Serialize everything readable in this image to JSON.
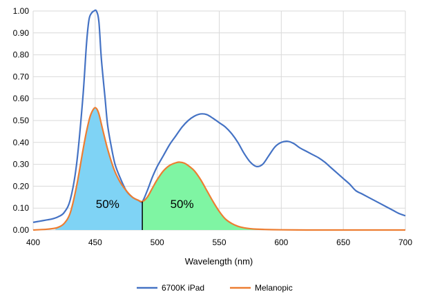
{
  "chart_data": {
    "type": "line",
    "title": "",
    "xlabel": "Wavelength (nm)",
    "ylabel": "",
    "xlim": [
      400,
      700
    ],
    "ylim": [
      0,
      1
    ],
    "xticks": [
      400,
      450,
      500,
      550,
      600,
      650,
      700
    ],
    "yticks": [
      0,
      0.1,
      0.2,
      0.3,
      0.4,
      0.5,
      0.6,
      0.7,
      0.8,
      0.9,
      1.0
    ],
    "xtick_labels": [
      "400",
      "450",
      "500",
      "550",
      "600",
      "650",
      "700"
    ],
    "ytick_labels": [
      "0.00",
      "0.10",
      "0.20",
      "0.30",
      "0.40",
      "0.50",
      "0.60",
      "0.70",
      "0.80",
      "0.90",
      "1.00"
    ],
    "grid": true,
    "legend_position": "bottom",
    "series": [
      {
        "name": "6700K iPad",
        "color": "#4472c4",
        "x": [
          400,
          405,
          410,
          415,
          420,
          425,
          430,
          435,
          440,
          443,
          445,
          447,
          449,
          451,
          453,
          455,
          458,
          460,
          463,
          466,
          470,
          475,
          480,
          485,
          488,
          492,
          496,
          500,
          505,
          510,
          515,
          520,
          525,
          530,
          535,
          540,
          545,
          550,
          555,
          560,
          565,
          570,
          575,
          580,
          585,
          590,
          595,
          600,
          605,
          610,
          615,
          620,
          625,
          630,
          635,
          640,
          645,
          650,
          655,
          660,
          665,
          670,
          675,
          680,
          685,
          690,
          695,
          700
        ],
        "y": [
          0.035,
          0.04,
          0.045,
          0.05,
          0.06,
          0.08,
          0.14,
          0.3,
          0.6,
          0.85,
          0.96,
          0.99,
          1.0,
          1.0,
          0.95,
          0.78,
          0.6,
          0.48,
          0.38,
          0.3,
          0.24,
          0.18,
          0.15,
          0.135,
          0.13,
          0.18,
          0.24,
          0.29,
          0.34,
          0.39,
          0.43,
          0.47,
          0.5,
          0.52,
          0.53,
          0.527,
          0.51,
          0.49,
          0.47,
          0.44,
          0.4,
          0.35,
          0.31,
          0.29,
          0.3,
          0.34,
          0.38,
          0.4,
          0.405,
          0.395,
          0.375,
          0.36,
          0.345,
          0.33,
          0.31,
          0.285,
          0.26,
          0.235,
          0.21,
          0.18,
          0.165,
          0.15,
          0.135,
          0.12,
          0.105,
          0.09,
          0.075,
          0.065
        ]
      },
      {
        "name": "Melanopic",
        "color": "#ed7d31",
        "x": [
          400,
          410,
          415,
          420,
          425,
          430,
          435,
          440,
          443,
          446,
          449,
          451,
          453,
          456,
          460,
          465,
          470,
          475,
          480,
          485,
          488,
          492,
          496,
          500,
          505,
          510,
          515,
          518,
          522,
          526,
          530,
          535,
          540,
          545,
          550,
          555,
          560,
          565,
          570,
          575,
          580,
          590,
          600,
          620,
          650,
          700
        ],
        "y": [
          0.0,
          0.003,
          0.006,
          0.012,
          0.03,
          0.08,
          0.2,
          0.36,
          0.45,
          0.52,
          0.555,
          0.555,
          0.53,
          0.46,
          0.37,
          0.28,
          0.22,
          0.18,
          0.15,
          0.135,
          0.13,
          0.15,
          0.19,
          0.23,
          0.27,
          0.295,
          0.307,
          0.31,
          0.305,
          0.29,
          0.27,
          0.23,
          0.18,
          0.13,
          0.085,
          0.05,
          0.03,
          0.017,
          0.01,
          0.006,
          0.004,
          0.002,
          0.001,
          0.0,
          0.0,
          0.0
        ]
      }
    ],
    "split_x": 488,
    "regions": [
      {
        "label": "50%",
        "color": "#7fd3f5",
        "label_x": 460,
        "label_y": 0.1
      },
      {
        "label": "50%",
        "color": "#7ff5a3",
        "label_x": 520,
        "label_y": 0.1
      }
    ]
  }
}
